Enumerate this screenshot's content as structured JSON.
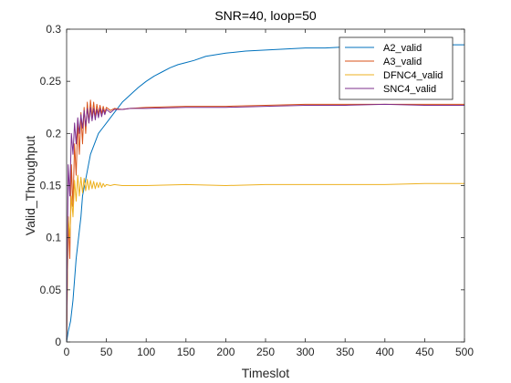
{
  "chart_data": {
    "type": "line",
    "title": "SNR=40, loop=50",
    "xlabel": "Timeslot",
    "ylabel": "Valid_Throughput",
    "xlim": [
      0,
      500
    ],
    "ylim": [
      0,
      0.3
    ],
    "xticks": [
      0,
      50,
      100,
      150,
      200,
      250,
      300,
      350,
      400,
      450,
      500
    ],
    "yticks": [
      0,
      0.05,
      0.1,
      0.15,
      0.2,
      0.25,
      0.3
    ],
    "xtick_labels": [
      "0",
      "50",
      "100",
      "150",
      "200",
      "250",
      "300",
      "350",
      "400",
      "450",
      "500"
    ],
    "ytick_labels": [
      "0",
      "0.05",
      "0.1",
      "0.15",
      "0.2",
      "0.25",
      "0.3"
    ],
    "grid": false,
    "legend_position": "top-right",
    "series": [
      {
        "name": "A2_valid",
        "color": "#0072BD",
        "x": [
          0,
          2,
          5,
          8,
          10,
          12,
          15,
          18,
          20,
          25,
          30,
          35,
          40,
          45,
          50,
          60,
          70,
          80,
          90,
          100,
          110,
          120,
          130,
          140,
          150,
          160,
          175,
          200,
          225,
          250,
          275,
          300,
          325,
          350,
          375,
          400,
          425,
          450,
          475,
          500
        ],
        "y": [
          0,
          0.01,
          0.02,
          0.04,
          0.06,
          0.08,
          0.1,
          0.12,
          0.14,
          0.16,
          0.18,
          0.19,
          0.2,
          0.205,
          0.21,
          0.22,
          0.23,
          0.237,
          0.244,
          0.25,
          0.255,
          0.259,
          0.263,
          0.266,
          0.268,
          0.27,
          0.274,
          0.277,
          0.279,
          0.28,
          0.281,
          0.282,
          0.282,
          0.283,
          0.283,
          0.284,
          0.284,
          0.284,
          0.285,
          0.285
        ]
      },
      {
        "name": "A3_valid",
        "color": "#D95319",
        "x": [
          0,
          2,
          4,
          6,
          8,
          10,
          12,
          14,
          16,
          18,
          20,
          22,
          24,
          26,
          28,
          30,
          32,
          34,
          36,
          38,
          40,
          42,
          44,
          46,
          48,
          50,
          55,
          60,
          70,
          80,
          100,
          150,
          200,
          250,
          300,
          350,
          400,
          450,
          500
        ],
        "y": [
          0,
          0.12,
          0.08,
          0.17,
          0.13,
          0.19,
          0.16,
          0.21,
          0.18,
          0.22,
          0.19,
          0.225,
          0.2,
          0.23,
          0.21,
          0.232,
          0.215,
          0.23,
          0.215,
          0.228,
          0.218,
          0.227,
          0.219,
          0.226,
          0.22,
          0.225,
          0.222,
          0.224,
          0.223,
          0.224,
          0.225,
          0.226,
          0.226,
          0.227,
          0.228,
          0.228,
          0.228,
          0.228,
          0.228
        ]
      },
      {
        "name": "DFNC4_valid",
        "color": "#EDB120",
        "x": [
          0,
          2,
          4,
          6,
          8,
          10,
          12,
          14,
          16,
          18,
          20,
          22,
          24,
          26,
          28,
          30,
          32,
          34,
          36,
          38,
          40,
          42,
          44,
          46,
          48,
          50,
          55,
          60,
          70,
          80,
          100,
          150,
          200,
          250,
          300,
          350,
          400,
          450,
          500
        ],
        "y": [
          0,
          0.12,
          0.1,
          0.14,
          0.12,
          0.155,
          0.135,
          0.16,
          0.14,
          0.158,
          0.143,
          0.157,
          0.145,
          0.156,
          0.146,
          0.155,
          0.147,
          0.154,
          0.147,
          0.153,
          0.148,
          0.153,
          0.148,
          0.152,
          0.149,
          0.151,
          0.15,
          0.151,
          0.15,
          0.15,
          0.15,
          0.151,
          0.15,
          0.151,
          0.151,
          0.151,
          0.151,
          0.152,
          0.152
        ]
      },
      {
        "name": "SNC4_valid",
        "color": "#7E2F8E",
        "x": [
          0,
          2,
          4,
          6,
          8,
          10,
          12,
          14,
          16,
          18,
          20,
          22,
          24,
          26,
          28,
          30,
          32,
          34,
          36,
          38,
          40,
          42,
          44,
          46,
          48,
          50,
          55,
          60,
          70,
          80,
          100,
          150,
          200,
          250,
          300,
          350,
          400,
          450,
          500
        ],
        "y": [
          0,
          0.17,
          0.14,
          0.2,
          0.18,
          0.21,
          0.19,
          0.215,
          0.2,
          0.218,
          0.205,
          0.222,
          0.207,
          0.224,
          0.21,
          0.225,
          0.212,
          0.224,
          0.213,
          0.223,
          0.215,
          0.224,
          0.216,
          0.223,
          0.218,
          0.223,
          0.22,
          0.223,
          0.223,
          0.224,
          0.224,
          0.225,
          0.225,
          0.226,
          0.227,
          0.227,
          0.228,
          0.227,
          0.227
        ]
      }
    ]
  }
}
